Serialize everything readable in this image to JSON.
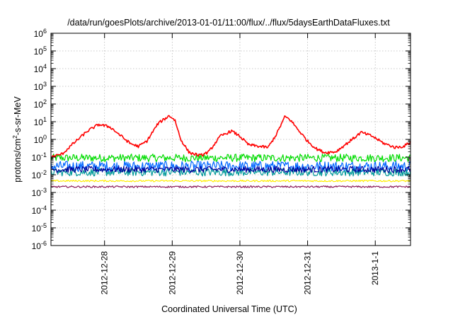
{
  "chart_data": {
    "type": "line",
    "title": "/data/run/goesPlots/archive/2013-01-01/11:00/flux/../flux/5daysEarthDataFluxes.txt",
    "xlabel": "Coordinated Universal Time (UTC)",
    "ylabel": "protons/cm²-s-sr-MeV",
    "ylabel_parts": {
      "pre": "protons/cm",
      "sup": "2",
      "post": "-s-sr-MeV"
    },
    "yscale": "log",
    "ylim_exp": [
      -6,
      6
    ],
    "y_ticks": [
      {
        "base": "10",
        "exp": "-6",
        "value": 1e-06
      },
      {
        "base": "10",
        "exp": "-5",
        "value": 1e-05
      },
      {
        "base": "10",
        "exp": "-4",
        "value": 0.0001
      },
      {
        "base": "10",
        "exp": "-3",
        "value": 0.001
      },
      {
        "base": "10",
        "exp": "-2",
        "value": 0.01
      },
      {
        "base": "10",
        "exp": "-1",
        "value": 0.1
      },
      {
        "base": "10",
        "exp": "0",
        "value": 1
      },
      {
        "base": "10",
        "exp": "1",
        "value": 10
      },
      {
        "base": "10",
        "exp": "2",
        "value": 100
      },
      {
        "base": "10",
        "exp": "3",
        "value": 1000
      },
      {
        "base": "10",
        "exp": "4",
        "value": 10000
      },
      {
        "base": "10",
        "exp": "5",
        "value": 100000
      },
      {
        "base": "10",
        "exp": "6",
        "value": 1000000
      }
    ],
    "x_range": [
      "2012-12-27T05:00",
      "2013-01-01T12:30"
    ],
    "x_ticks": [
      "2012-12-28",
      "2012-12-29",
      "2012-12-30",
      "2012-12-31",
      "2013-1-1"
    ],
    "x_tick_dates": [
      "2012-12-28T00:00",
      "2012-12-29T00:00",
      "2012-12-30T00:00",
      "2012-12-31T00:00",
      "2013-01-01T00:00"
    ],
    "grid": true,
    "legend": "none",
    "series": [
      {
        "color": "#ff0000",
        "noise": 0.08,
        "points": [
          [
            "2012-12-27T05:00",
            0.1
          ],
          [
            "2012-12-27T09:00",
            0.15
          ],
          [
            "2012-12-27T13:00",
            0.6
          ],
          [
            "2012-12-27T18:00",
            3
          ],
          [
            "2012-12-27T22:00",
            7
          ],
          [
            "2012-12-28T02:00",
            5
          ],
          [
            "2012-12-28T06:00",
            1.5
          ],
          [
            "2012-12-28T09:00",
            0.6
          ],
          [
            "2012-12-28T12:00",
            0.4
          ],
          [
            "2012-12-28T15:00",
            0.8
          ],
          [
            "2012-12-28T19:00",
            8
          ],
          [
            "2012-12-28T23:00",
            22
          ],
          [
            "2012-12-29T01:00",
            12
          ],
          [
            "2012-12-29T03:00",
            1
          ],
          [
            "2012-12-29T06:00",
            0.18
          ],
          [
            "2012-12-29T10:00",
            0.12
          ],
          [
            "2012-12-29T13:00",
            0.2
          ],
          [
            "2012-12-29T17:00",
            1.5
          ],
          [
            "2012-12-29T21:00",
            3
          ],
          [
            "2012-12-30T00:00",
            1.5
          ],
          [
            "2012-12-30T03:00",
            0.5
          ],
          [
            "2012-12-30T07:00",
            0.4
          ],
          [
            "2012-12-30T10:00",
            0.35
          ],
          [
            "2012-12-30T13:00",
            2
          ],
          [
            "2012-12-30T16:00",
            20
          ],
          [
            "2012-12-30T18:00",
            12
          ],
          [
            "2012-12-30T21:00",
            3
          ],
          [
            "2012-12-31T00:00",
            0.8
          ],
          [
            "2012-12-31T03:00",
            0.3
          ],
          [
            "2012-12-31T06:00",
            0.18
          ],
          [
            "2012-12-31T10:00",
            0.2
          ],
          [
            "2012-12-31T14:00",
            0.6
          ],
          [
            "2012-12-31T19:00",
            2.5
          ],
          [
            "2012-12-31T23:00",
            1.5
          ],
          [
            "2013-01-01T03:00",
            0.6
          ],
          [
            "2013-01-01T07:00",
            0.35
          ],
          [
            "2013-01-01T10:00",
            0.4
          ],
          [
            "2013-01-01T12:30",
            0.7
          ]
        ]
      },
      {
        "color": "#00dd00",
        "noise": 0.22,
        "points": [
          [
            "2012-12-27T05:00",
            0.09
          ],
          [
            "2013-01-01T12:30",
            0.09
          ]
        ]
      },
      {
        "color": "#0066ff",
        "noise": 0.3,
        "points": [
          [
            "2012-12-27T05:00",
            0.03
          ],
          [
            "2013-01-01T12:30",
            0.03
          ]
        ]
      },
      {
        "color": "#009999",
        "noise": 0.22,
        "points": [
          [
            "2012-12-27T05:00",
            0.014
          ],
          [
            "2013-01-01T12:30",
            0.014
          ]
        ]
      },
      {
        "color": "#000099",
        "noise": 0.18,
        "points": [
          [
            "2012-12-27T05:00",
            0.02
          ],
          [
            "2013-01-01T12:30",
            0.02
          ]
        ]
      },
      {
        "color": "#ffee00",
        "noise": 0.05,
        "points": [
          [
            "2012-12-27T05:00",
            0.0045
          ],
          [
            "2013-01-01T12:30",
            0.0045
          ]
        ]
      },
      {
        "color": "#8b1a5a",
        "noise": 0.05,
        "points": [
          [
            "2012-12-27T05:00",
            0.0021
          ],
          [
            "2013-01-01T12:30",
            0.0021
          ]
        ]
      }
    ]
  }
}
